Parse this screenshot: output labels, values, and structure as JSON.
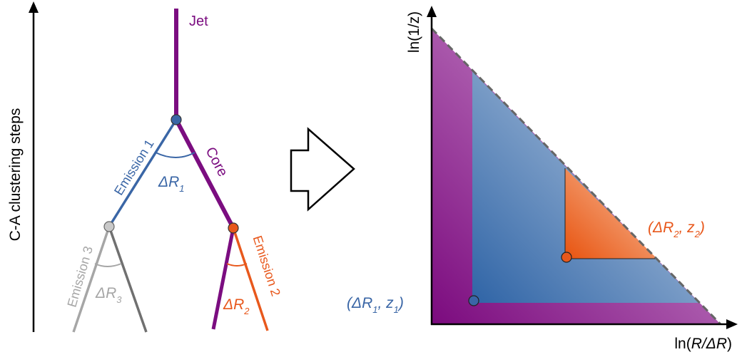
{
  "left_diagram": {
    "axis_label": "C-A clustering steps",
    "jet_label": "Jet",
    "core_label": "Core",
    "emission1_label": "Emission 1",
    "emission2_label": "Emission 2",
    "emission3_label": "Emission 3",
    "angle1": {
      "symbol": "ΔR",
      "sub": "1"
    },
    "angle2": {
      "symbol": "ΔR",
      "sub": "2"
    },
    "angle3": {
      "symbol": "ΔR",
      "sub": "3"
    }
  },
  "arrow": {
    "meaning": "maps to"
  },
  "right_diagram": {
    "y_label": "ln(1/z)",
    "x_label_prefix": "ln(",
    "x_label_var": "R/ΔR",
    "x_label_suffix": ")",
    "point1": {
      "open": "(ΔR",
      "sub_r": "1",
      "comma": ", z",
      "sub_z": "1",
      "close": ")"
    },
    "point2": {
      "open": "(ΔR",
      "sub_r": "2",
      "comma": ", z",
      "sub_z": "2",
      "close": ")"
    }
  },
  "colors": {
    "purple": "#7b0d80",
    "blue": "#3a66a6",
    "orange": "#e8581c",
    "gray": "#a6a6a6",
    "dark_gray": "#707070"
  }
}
